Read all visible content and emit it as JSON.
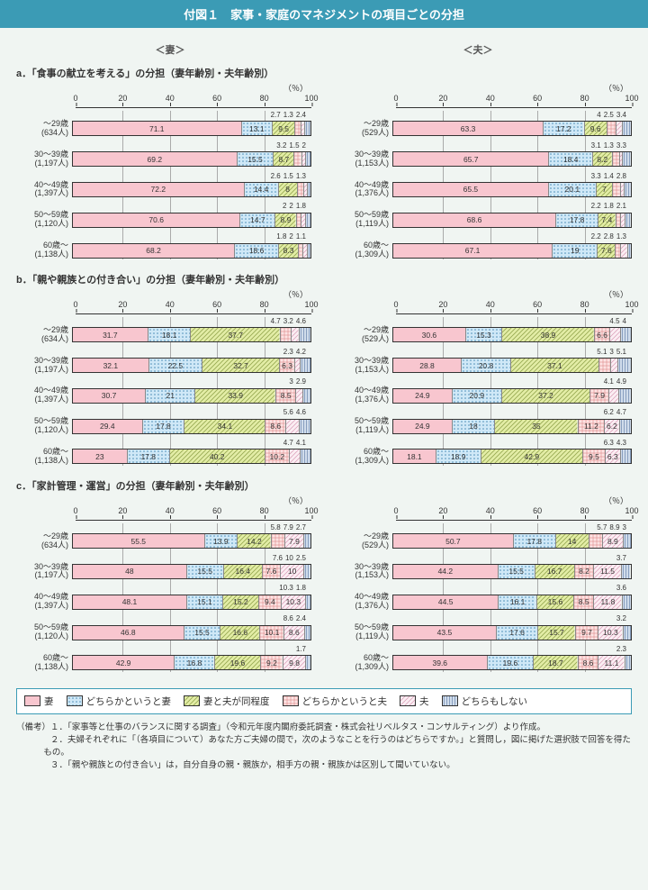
{
  "title": "付図１　家事・家庭のマネジメントの項目ごとの分担",
  "col_headers": [
    "＜妻＞",
    "＜夫＞"
  ],
  "patterns": {
    "wife": {
      "fill": "#f8c6cf",
      "label": "妻"
    },
    "lean_wife": {
      "fill": "#cfe8f7",
      "hatch": "dots",
      "label": "どちらかというと妻"
    },
    "equal": {
      "fill": "#e3eda6",
      "hatch": "diag",
      "label": "妻と夫が同程度"
    },
    "lean_husb": {
      "fill": "#f6d2d2",
      "hatch": "grid",
      "label": "どちらかというと夫"
    },
    "husb": {
      "fill": "#f5e1e9",
      "hatch": "diag2",
      "label": "夫"
    },
    "neither": {
      "fill": "#c7d6ee",
      "hatch": "vert",
      "label": "どちらもしない"
    }
  },
  "axis_ticks": [
    0,
    20,
    40,
    60,
    80,
    100
  ],
  "sections": [
    {
      "id": "a",
      "title": "a．「食事の献立を考える」の分担（妻年齢別・夫年齢別）",
      "left": [
        {
          "label": "～29歳",
          "n": "634人",
          "values": [
            71.1,
            13.1,
            9.5,
            2.7,
            1.3,
            2.4
          ],
          "small": [
            2.7,
            1.3,
            2.4
          ]
        },
        {
          "label": "30～39歳",
          "n": "1,197人",
          "values": [
            69.2,
            15.5,
            8.7,
            3.2,
            1.5,
            2.0
          ],
          "small": [
            3.2,
            1.5,
            2.0
          ]
        },
        {
          "label": "40～49歳",
          "n": "1,397人",
          "values": [
            72.2,
            14.4,
            8.0,
            2.6,
            1.5,
            1.3
          ],
          "small": [
            2.6,
            1.5,
            1.3
          ]
        },
        {
          "label": "50～59歳",
          "n": "1,120人",
          "values": [
            70.6,
            14.7,
            8.9,
            2.0,
            2.0,
            1.8
          ],
          "small": [
            2.0,
            2.0,
            1.8
          ]
        },
        {
          "label": "60歳～",
          "n": "1,138人",
          "values": [
            68.2,
            18.6,
            8.3,
            1.8,
            2.0,
            1.1
          ],
          "small": [
            1.8,
            2.0,
            1.1
          ]
        }
      ],
      "right": [
        {
          "label": "～29歳",
          "n": "529人",
          "values": [
            63.3,
            17.2,
            9.6,
            4.0,
            2.5,
            3.4
          ],
          "small": [
            4.0,
            2.5,
            3.4
          ]
        },
        {
          "label": "30～39歳",
          "n": "1,153人",
          "values": [
            65.7,
            18.4,
            8.2,
            3.1,
            1.3,
            3.3
          ],
          "small": [
            3.1,
            1.3,
            3.3
          ]
        },
        {
          "label": "40～49歳",
          "n": "1,376人",
          "values": [
            65.5,
            20.1,
            7.0,
            3.3,
            1.4,
            2.8
          ],
          "small": [
            3.3,
            1.4,
            2.8
          ]
        },
        {
          "label": "50～59歳",
          "n": "1,119人",
          "values": [
            68.6,
            17.8,
            7.4,
            2.2,
            1.8,
            2.1
          ],
          "small": [
            2.2,
            1.8,
            2.1
          ]
        },
        {
          "label": "60歳～",
          "n": "1,309人",
          "values": [
            67.1,
            19.0,
            7.6,
            2.2,
            2.8,
            1.3
          ],
          "small": [
            2.2,
            2.8,
            1.3
          ]
        }
      ]
    },
    {
      "id": "b",
      "title": "b．「親や親族との付き合い」の分担（妻年齢別・夫年齢別）",
      "left": [
        {
          "label": "～29歳",
          "n": "634人",
          "values": [
            31.7,
            18.1,
            37.7,
            4.7,
            3.2,
            4.6
          ],
          "small": [
            4.7,
            3.2,
            4.6
          ]
        },
        {
          "label": "30～39歳",
          "n": "1,197人",
          "values": [
            32.1,
            22.5,
            32.7,
            6.3,
            2.3,
            4.2
          ],
          "small": [
            2.3,
            4.2
          ]
        },
        {
          "label": "40～49歳",
          "n": "1,397人",
          "values": [
            30.7,
            21.0,
            33.9,
            8.5,
            3.0,
            2.9
          ],
          "small": [
            3.0,
            2.9
          ]
        },
        {
          "label": "50～59歳",
          "n": "1,120人",
          "values": [
            29.4,
            17.8,
            34.1,
            8.6,
            5.6,
            4.6
          ],
          "small": [
            5.6,
            4.6
          ]
        },
        {
          "label": "60歳～",
          "n": "1,138人",
          "values": [
            23.0,
            17.8,
            40.2,
            10.2,
            4.7,
            4.1
          ],
          "small": [
            4.7,
            4.1
          ]
        }
      ],
      "right": [
        {
          "label": "～29歳",
          "n": "529人",
          "values": [
            30.6,
            15.3,
            38.9,
            6.6,
            4.5,
            4.0
          ],
          "small": [
            4.5,
            4.0
          ]
        },
        {
          "label": "30～39歳",
          "n": "1,153人",
          "values": [
            28.8,
            20.8,
            37.1,
            5.1,
            3.0,
            5.1
          ],
          "small": [
            5.1,
            3.0,
            5.1
          ]
        },
        {
          "label": "40～49歳",
          "n": "1,376人",
          "values": [
            24.9,
            20.9,
            37.2,
            7.9,
            4.1,
            4.9
          ],
          "small": [
            4.1,
            4.9
          ]
        },
        {
          "label": "50～59歳",
          "n": "1,119人",
          "values": [
            24.9,
            18.0,
            35.0,
            11.2,
            6.2,
            4.7
          ],
          "small": [
            6.2,
            4.7
          ]
        },
        {
          "label": "60歳～",
          "n": "1,309人",
          "values": [
            18.1,
            18.9,
            42.9,
            9.5,
            6.3,
            4.3
          ],
          "small": [
            6.3,
            4.3
          ]
        }
      ]
    },
    {
      "id": "c",
      "title": "c．「家計管理・運営」の分担（妻年齢別・夫年齢別）",
      "left": [
        {
          "label": "～29歳",
          "n": "634人",
          "values": [
            55.5,
            13.9,
            14.2,
            5.8,
            7.9,
            2.7
          ],
          "small": [
            5.8,
            7.9,
            2.7
          ]
        },
        {
          "label": "30～39歳",
          "n": "1,197人",
          "values": [
            48.0,
            15.5,
            16.4,
            7.6,
            10.0,
            2.5
          ],
          "small": [
            7.6,
            10.0,
            2.5
          ]
        },
        {
          "label": "40～49歳",
          "n": "1,397人",
          "values": [
            48.1,
            15.1,
            15.2,
            9.4,
            10.3,
            1.8
          ],
          "small": [
            10.3,
            1.8
          ]
        },
        {
          "label": "50～59歳",
          "n": "1,120人",
          "values": [
            46.8,
            15.5,
            16.6,
            10.1,
            8.6,
            2.4
          ],
          "small": [
            8.6,
            2.4
          ]
        },
        {
          "label": "60歳～",
          "n": "1,138人",
          "values": [
            42.9,
            16.8,
            19.6,
            9.2,
            9.8,
            1.7
          ],
          "small": [
            1.7
          ]
        }
      ],
      "right": [
        {
          "label": "～29歳",
          "n": "529人",
          "values": [
            50.7,
            17.8,
            14.0,
            5.7,
            8.9,
            3.0
          ],
          "small": [
            5.7,
            8.9,
            3.0
          ]
        },
        {
          "label": "30～39歳",
          "n": "1,153人",
          "values": [
            44.2,
            15.5,
            16.7,
            8.2,
            11.5,
            3.7
          ],
          "small": [
            3.7
          ]
        },
        {
          "label": "40～49歳",
          "n": "1,376人",
          "values": [
            44.5,
            16.1,
            15.6,
            8.5,
            11.8,
            3.6
          ],
          "small": [
            3.6
          ]
        },
        {
          "label": "50～59歳",
          "n": "1,119人",
          "values": [
            43.5,
            17.6,
            15.7,
            9.7,
            10.3,
            3.2
          ],
          "small": [
            3.2
          ]
        },
        {
          "label": "60歳～",
          "n": "1,309人",
          "values": [
            39.6,
            19.6,
            18.7,
            8.6,
            11.1,
            2.3
          ],
          "small": [
            2.3
          ]
        }
      ]
    }
  ],
  "notes": [
    "（備考）１．「家事等と仕事のバランスに関する調査」（令和元年度内閣府委託調査・株式会社リベルタス・コンサルティング）より作成。",
    "　　　　２．夫婦それぞれに「（各項目について）あなた方ご夫婦の間で，次のようなことを行うのはどちらですか。」と質問し，図に掲げた選択肢で回答を得たもの。",
    "　　　　３．「親や親族との付き合い」は，自分自身の親・親族か，相手方の親・親族かは区別して聞いていない。"
  ]
}
